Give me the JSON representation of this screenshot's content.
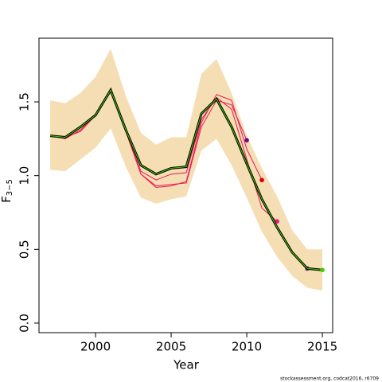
{
  "chart_data": {
    "type": "retro-line",
    "x_label": "Year",
    "y_label": "F",
    "y_label_subscript": "3−5",
    "footer": "stockassessment.org, codcat2016, r6709",
    "x": [
      1997,
      1998,
      1999,
      2000,
      2001,
      2002,
      2003,
      2004,
      2005,
      2006,
      2007,
      2008,
      2009,
      2010,
      2011,
      2012,
      2013,
      2014,
      2015
    ],
    "band": {
      "color": "#f5deb3",
      "lower": [
        1.04,
        1.03,
        1.11,
        1.19,
        1.32,
        1.06,
        0.85,
        0.81,
        0.84,
        0.86,
        1.17,
        1.25,
        1.07,
        0.85,
        0.62,
        0.45,
        0.32,
        0.24,
        0.22
      ],
      "upper": [
        1.51,
        1.49,
        1.56,
        1.67,
        1.86,
        1.54,
        1.29,
        1.21,
        1.26,
        1.26,
        1.69,
        1.79,
        1.56,
        1.27,
        1.05,
        0.86,
        0.63,
        0.5,
        0.5
      ]
    },
    "series": [
      {
        "color": "#e8195a",
        "dot_color": "#800080",
        "values": [
          1.27,
          1.26,
          1.3,
          1.41,
          1.57,
          1.3,
          1.01,
          0.93,
          0.94,
          0.95,
          1.33,
          1.51,
          1.48,
          1.24,
          null,
          null,
          null,
          null,
          null
        ]
      },
      {
        "color": "#e8195a",
        "dot_color": "#dd0000",
        "values": [
          1.27,
          1.26,
          1.3,
          1.41,
          1.57,
          1.3,
          1.01,
          0.92,
          0.93,
          0.96,
          1.36,
          1.55,
          1.51,
          1.18,
          0.97,
          null,
          null,
          null,
          null
        ]
      },
      {
        "color": "#e8195a",
        "dot_color": "#ee1188",
        "values": [
          1.27,
          1.25,
          1.31,
          1.41,
          1.57,
          1.3,
          1.03,
          0.97,
          1.01,
          1.02,
          1.38,
          1.53,
          1.45,
          1.11,
          0.78,
          0.69,
          null,
          null,
          null
        ]
      },
      {
        "color": "#e8195a",
        "dot_color": "#7a1080",
        "values": [
          1.27,
          1.26,
          1.33,
          1.41,
          1.58,
          1.31,
          1.07,
          1.01,
          1.05,
          1.06,
          1.42,
          1.52,
          1.33,
          1.08,
          0.84,
          0.65,
          0.48,
          0.37,
          null
        ]
      },
      {
        "color": "#000000",
        "inner_color": "#44cc00",
        "dot_color": "#44cc00",
        "values": [
          1.27,
          1.26,
          1.33,
          1.41,
          1.58,
          1.31,
          1.07,
          1.01,
          1.05,
          1.06,
          1.42,
          1.52,
          1.33,
          1.08,
          0.84,
          0.65,
          0.48,
          0.37,
          0.36
        ]
      }
    ],
    "xlim": [
      1996.26,
      2015.68
    ],
    "ylim": [
      -0.065,
      1.932
    ],
    "xticks": [
      2000,
      2005,
      2010,
      2015
    ],
    "yticks": [
      {
        "value": 0,
        "label": "0.0"
      },
      {
        "value": 0.5,
        "label": "0.5"
      },
      {
        "value": 1,
        "label": "1.0"
      },
      {
        "value": 1.5,
        "label": "1.5"
      }
    ]
  }
}
